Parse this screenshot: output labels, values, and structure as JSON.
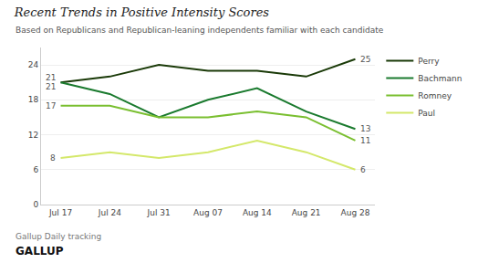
{
  "chart_data": {
    "type": "line",
    "title": "Recent Trends in Positive Intensity Scores",
    "subtitle": "Based on Republicans and Republican-leaning independents familiar with each candidate",
    "annotations": [
      "Gallup Daily tracking",
      "GALLUP"
    ],
    "categories": [
      "Jul 17",
      "Jul 24",
      "Jul 31",
      "Aug 07",
      "Aug 14",
      "Aug 21",
      "Aug 28"
    ],
    "series": [
      {
        "name": "Perry",
        "color": "#1a3a08",
        "values": [
          21,
          22,
          24,
          23,
          23,
          22,
          25
        ]
      },
      {
        "name": "Bachmann",
        "color": "#1a7a2e",
        "values": [
          21,
          19,
          15,
          18,
          20,
          16,
          13
        ]
      },
      {
        "name": "Romney",
        "color": "#7abf30",
        "values": [
          17,
          17,
          15,
          15,
          16,
          15,
          11
        ]
      },
      {
        "name": "Paul",
        "color": "#d4e86a",
        "values": [
          8,
          9,
          8,
          9,
          11,
          9,
          6
        ]
      }
    ],
    "ylim": [
      0,
      27
    ],
    "yticks": [
      0,
      6,
      12,
      18,
      24
    ],
    "grid": true,
    "legend": "right",
    "data_labels": "ends"
  }
}
